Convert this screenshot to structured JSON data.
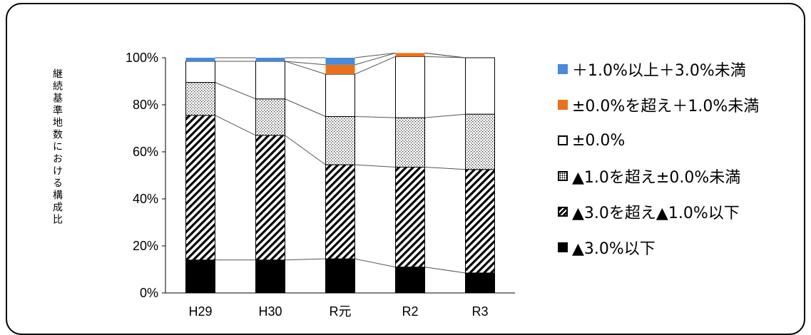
{
  "chart_data": {
    "type": "bar",
    "stacked": true,
    "ylabel": "継続基準地数における構成比",
    "ylim": [
      0,
      100
    ],
    "yticks": [
      "0%",
      "20%",
      "40%",
      "60%",
      "80%",
      "100%"
    ],
    "categories": [
      "H29",
      "H30",
      "R元",
      "R2",
      "R3"
    ],
    "series": [
      {
        "name": "▲3.0%以下",
        "pattern": "solid",
        "color": "#000000",
        "values": [
          14,
          14,
          14.5,
          11,
          8.5
        ]
      },
      {
        "name": "▲3.0を超え▲1.0%以下",
        "pattern": "diagonal",
        "color": "#000000",
        "values": [
          61.5,
          53,
          40,
          42.5,
          44
        ]
      },
      {
        "name": "▲1.0を超え±0.0%未満",
        "pattern": "dots",
        "color": "#000000",
        "values": [
          14,
          15.5,
          20.5,
          21,
          23.5
        ]
      },
      {
        "name": "±0.0%",
        "pattern": "empty",
        "color": "#ffffff",
        "values": [
          9,
          16,
          18,
          26,
          24
        ]
      },
      {
        "name": "±0.0%を超え＋1.0%未満",
        "pattern": "solid",
        "color": "#e8711f",
        "values": [
          0,
          0,
          4,
          1.5,
          0
        ]
      },
      {
        "name": "＋1.0%以上＋3.0%未満",
        "pattern": "solid",
        "color": "#4a8ad6",
        "values": [
          1.5,
          1.5,
          3,
          0,
          0
        ]
      }
    ],
    "legend_order": [
      5,
      4,
      3,
      2,
      1,
      0
    ],
    "legend_position": "right",
    "series_lines": true
  }
}
